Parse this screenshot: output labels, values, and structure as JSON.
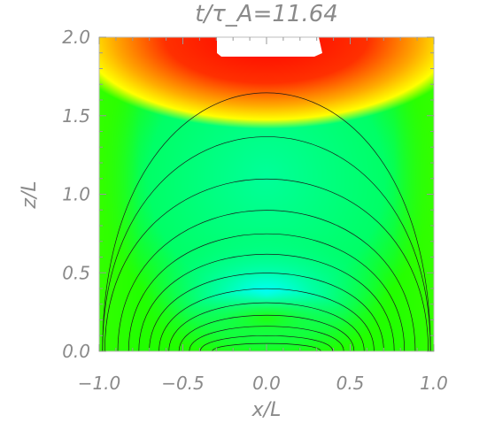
{
  "chart_data": {
    "type": "heatmap",
    "title": "t/τ_A=11.64",
    "xlabel": "x/L",
    "ylabel": "z/L",
    "xlim": [
      -1.0,
      1.0
    ],
    "ylim": [
      0.0,
      2.0
    ],
    "x_ticks": [
      "−1.0",
      "−0.5",
      "0.0",
      "0.5",
      "1.0"
    ],
    "x_tick_values": [
      -1.0,
      -0.5,
      0.0,
      0.5,
      1.0
    ],
    "y_ticks": [
      "0.0",
      "0.5",
      "1.0",
      "1.5",
      "2.0"
    ],
    "y_tick_values": [
      0.0,
      0.5,
      1.0,
      1.5,
      2.0
    ],
    "colormap": [
      "#00ffff",
      "#00ff66",
      "#00ff00",
      "#ffff00",
      "#ff0000",
      "#ffffff"
    ],
    "field_lines_apex_z": [
      0.05,
      0.1,
      0.16,
      0.23,
      0.31,
      0.4,
      0.5,
      0.62,
      0.75,
      0.9,
      1.1,
      1.37,
      1.65
    ],
    "features": {
      "hot_region": {
        "x_range": [
          -0.65,
          0.65
        ],
        "z_range": [
          1.75,
          2.0
        ],
        "color": "#ff0000"
      },
      "saturated_region": {
        "x_range": [
          -0.3,
          0.3
        ],
        "z_range": [
          1.88,
          2.0
        ],
        "color": "#ffffff"
      },
      "cool_region": {
        "x": 0.0,
        "z": 0.35,
        "color": "#00ffff"
      }
    }
  }
}
